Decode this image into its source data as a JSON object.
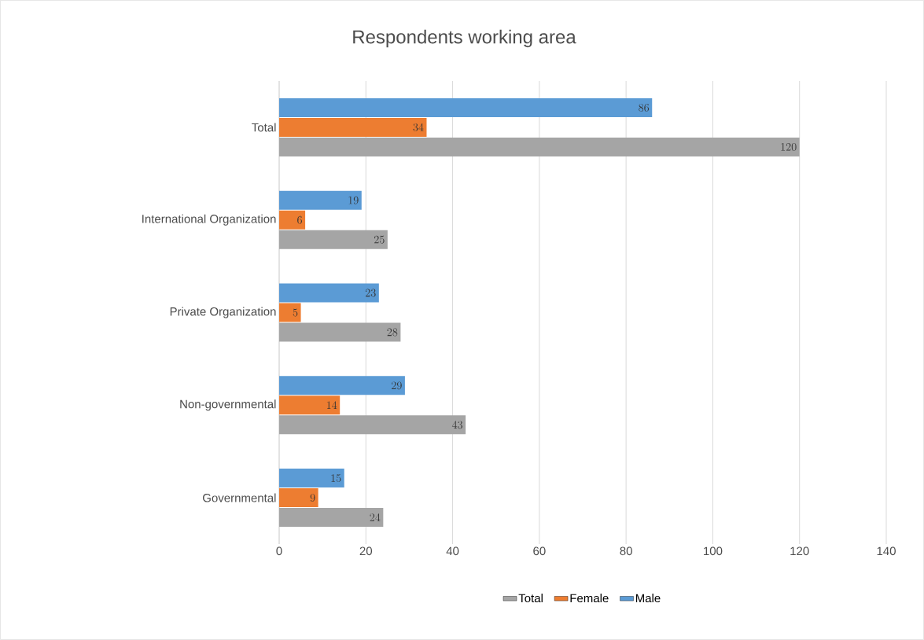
{
  "chart_data": {
    "type": "bar",
    "orientation": "horizontal",
    "title": "Respondents working area",
    "categories": [
      "Total",
      "International Organization",
      "Private Organization",
      "Non-governmental",
      "Governmental"
    ],
    "series": [
      {
        "name": "Total",
        "color": "#a5a5a5",
        "values": [
          120,
          25,
          28,
          43,
          24
        ]
      },
      {
        "name": "Female",
        "color": "#ed7d31",
        "values": [
          34,
          6,
          5,
          14,
          9
        ]
      },
      {
        "name": "Male",
        "color": "#5b9bd5",
        "values": [
          86,
          19,
          23,
          29,
          15
        ]
      }
    ],
    "xlim": [
      0,
      140
    ],
    "xticks": [
      0,
      20,
      40,
      60,
      80,
      100,
      120,
      140
    ],
    "grid": "x",
    "legend": "bottom",
    "data_labels": true
  }
}
